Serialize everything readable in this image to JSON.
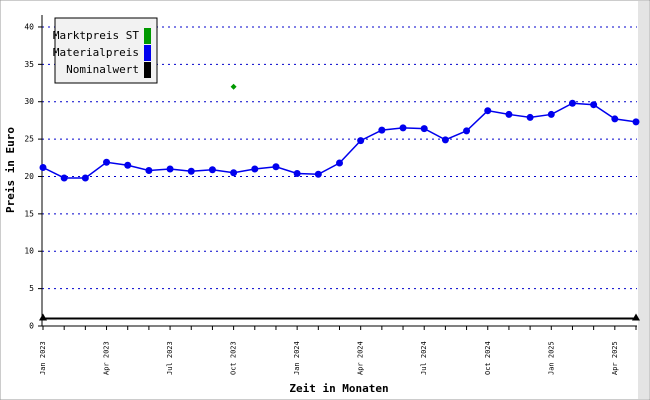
{
  "chart_data": {
    "type": "line",
    "x_label": "Zeit in Monaten",
    "y_label": "Preis in Euro",
    "categories": [
      "Jan 2023",
      null,
      null,
      "Apr 2023",
      null,
      null,
      "Jul 2023",
      null,
      null,
      "Oct 2023",
      null,
      null,
      "Jan 2024",
      null,
      null,
      "Apr 2024",
      null,
      null,
      "Jul 2024",
      null,
      null,
      "Oct 2024",
      null,
      null,
      "Jan 2025",
      null,
      null,
      "Apr 2025",
      null
    ],
    "series": [
      {
        "name": "Marktpreis ST",
        "color": "#009900",
        "marker": "diamond",
        "values": [
          null,
          null,
          null,
          null,
          null,
          null,
          null,
          null,
          null,
          32.0,
          null,
          null,
          null,
          null,
          null,
          null,
          null,
          null,
          null,
          null,
          null,
          null,
          null,
          null,
          null,
          null,
          null,
          null,
          null
        ]
      },
      {
        "name": "Materialpreis",
        "color": "#0000ee",
        "marker": "circle",
        "values": [
          21.2,
          19.8,
          19.8,
          21.9,
          21.5,
          20.8,
          21.0,
          20.7,
          20.9,
          20.5,
          21.0,
          21.3,
          20.4,
          20.3,
          21.8,
          24.8,
          26.2,
          26.5,
          26.4,
          24.9,
          26.1,
          28.8,
          28.3,
          27.9,
          28.3,
          29.8,
          29.6,
          27.7,
          27.3
        ]
      },
      {
        "name": "Nominalwert",
        "color": "#000000",
        "marker": "none",
        "values": [
          1,
          1,
          1,
          1,
          1,
          1,
          1,
          1,
          1,
          1,
          1,
          1,
          1,
          1,
          1,
          1,
          1,
          1,
          1,
          1,
          1,
          1,
          1,
          1,
          1,
          1,
          1,
          1,
          1
        ]
      }
    ],
    "ylim": [
      0,
      41.6
    ],
    "yticks": [
      0,
      5,
      10,
      15,
      20,
      25,
      30,
      35,
      40
    ],
    "grid": true,
    "legend": "upper left"
  }
}
